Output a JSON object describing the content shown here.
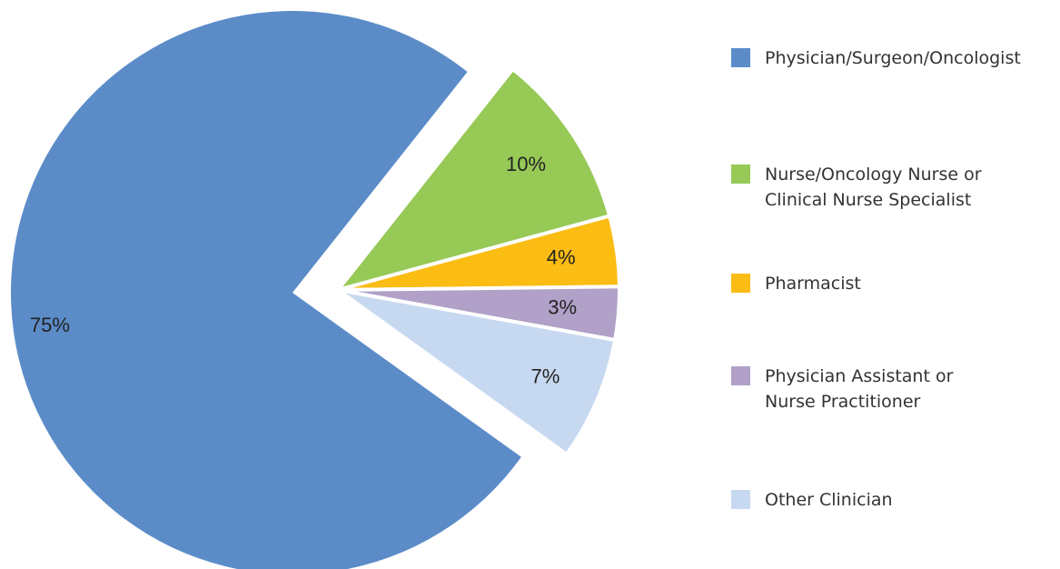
{
  "chart_data": {
    "type": "pie",
    "categories": [
      "Physician/Surgeon/Oncologist",
      "Nurse/Oncology Nurse or\nClinical Nurse Specialist",
      "Pharmacist",
      "Physician Assistant or\nNurse Practitioner",
      "Other Clinician"
    ],
    "values": [
      75,
      10,
      4,
      3,
      7
    ],
    "value_labels": [
      "75%",
      "10%",
      "4%",
      "3%",
      "7%"
    ],
    "colors": [
      "#5b8cc8",
      "#97c957",
      "#fbbc14",
      "#b1a1c9",
      "#c7d9f0"
    ]
  }
}
